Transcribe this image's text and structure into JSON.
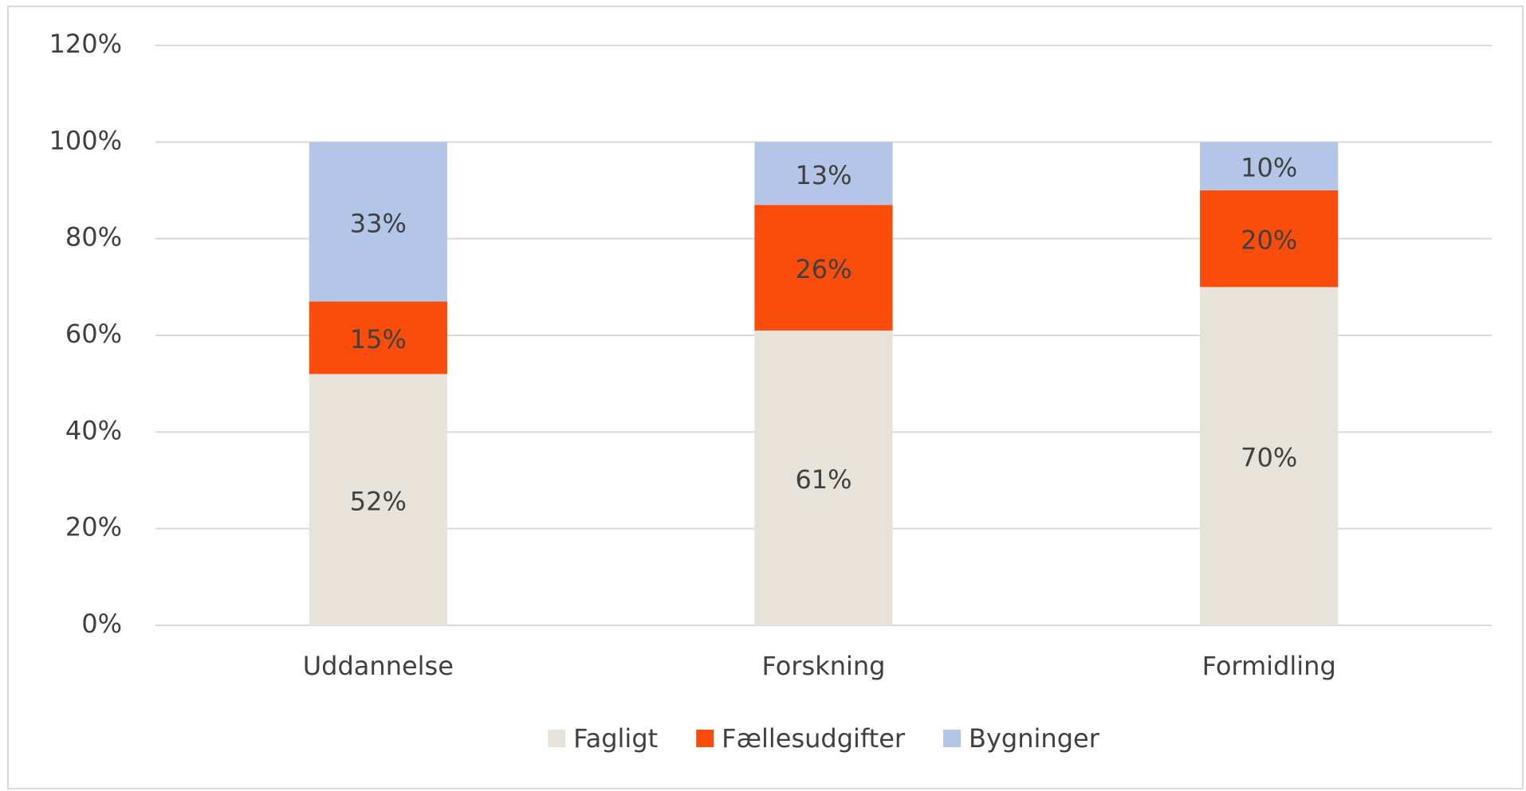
{
  "chart_data": {
    "type": "stacked_bar",
    "categories": [
      "Uddannelse",
      "Forskning",
      "Formidling"
    ],
    "series": [
      {
        "name": "Fagligt",
        "color": "#e7e2da",
        "values": [
          52,
          61,
          70
        ],
        "value_labels": [
          "52%",
          "61%",
          "70%"
        ]
      },
      {
        "name": "Fællesudgifter",
        "color": "#fa4c0a",
        "values": [
          15,
          26,
          20
        ],
        "value_labels": [
          "15%",
          "26%",
          "20%"
        ]
      },
      {
        "name": "Bygninger",
        "color": "#b4c6e7",
        "values": [
          33,
          13,
          10
        ],
        "value_labels": [
          "33%",
          "13%",
          "10%"
        ]
      }
    ],
    "ylim": [
      0,
      120
    ],
    "yticks": [
      {
        "value": 0,
        "label": "0%"
      },
      {
        "value": 20,
        "label": "20%"
      },
      {
        "value": 40,
        "label": "40%"
      },
      {
        "value": 60,
        "label": "60%"
      },
      {
        "value": 80,
        "label": "80%"
      },
      {
        "value": 100,
        "label": "100%"
      },
      {
        "value": 120,
        "label": "120%"
      }
    ],
    "grid": true,
    "legend": "bottom"
  }
}
